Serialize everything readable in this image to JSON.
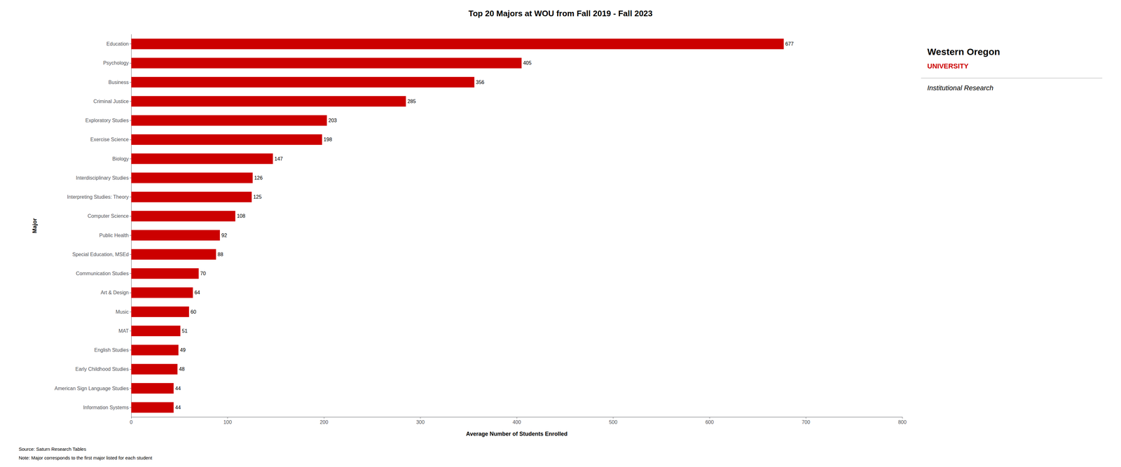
{
  "chart_data": {
    "type": "bar",
    "orientation": "horizontal",
    "title": "Top 20 Majors at WOU from Fall 2019 - Fall 2023",
    "xlabel": "Average Number of Students Enrolled",
    "ylabel": "Major",
    "categories": [
      "Information Systems",
      "American Sign Language Studies",
      "Early Childhood Studies",
      "English Studies",
      "MAT",
      "Music",
      "Art & Design",
      "Communication Studies",
      "Special Education, MSEd",
      "Public Health",
      "Computer Science",
      "Interpreting Studies: Theory",
      "Interdisciplinary Studies",
      "Biology",
      "Exercise Science",
      "Exploratory Studies",
      "Criminal Justice",
      "Business",
      "Psychology",
      "Education"
    ],
    "values": [
      44,
      44,
      48,
      49,
      51,
      60,
      64,
      70,
      88,
      92,
      108,
      125,
      126,
      147,
      198,
      203,
      285,
      356,
      405,
      677
    ],
    "color": "#CC0000",
    "xlim": [
      0,
      800
    ],
    "xticks": [
      0,
      100,
      200,
      300,
      400,
      500,
      600,
      700,
      800
    ],
    "grid": false,
    "data_labels": true,
    "annotations": [
      "Source: Saturn Research Tables",
      "Note: Major corresponds to the first major listed for each student",
      "Western Oregon",
      "UNIVERSITY",
      "Institutional Research"
    ]
  }
}
